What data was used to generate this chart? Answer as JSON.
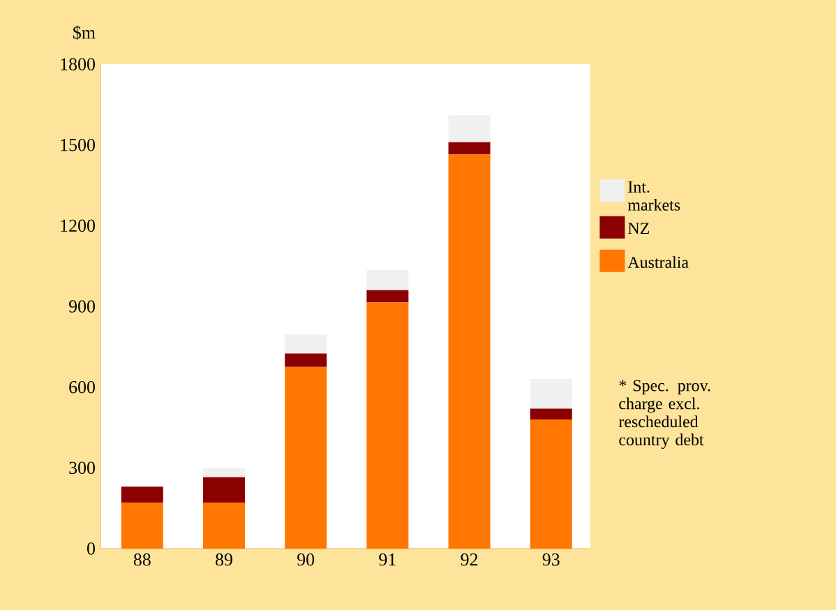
{
  "chart_data": {
    "type": "bar",
    "stacked": true,
    "ylabel": "$m",
    "categories": [
      "88",
      "89",
      "90",
      "91",
      "92",
      "93"
    ],
    "series": [
      {
        "name": "Australia",
        "color": "#ff7700",
        "values": [
          170,
          170,
          675,
          915,
          1465,
          480
        ]
      },
      {
        "name": "NZ",
        "color": "#8b0000",
        "values": [
          60,
          95,
          50,
          45,
          45,
          40
        ]
      },
      {
        "name": "Int. markets",
        "color": "#f0f0f0",
        "values": [
          0,
          35,
          70,
          75,
          100,
          110
        ]
      }
    ],
    "ylim": [
      0,
      1800
    ],
    "yticks": [
      0,
      300,
      600,
      900,
      1200,
      1500,
      1800
    ],
    "legend": "right",
    "grid": false,
    "annotations": [
      "* Spec. prov. charge excl. rescheduled country debt"
    ]
  }
}
